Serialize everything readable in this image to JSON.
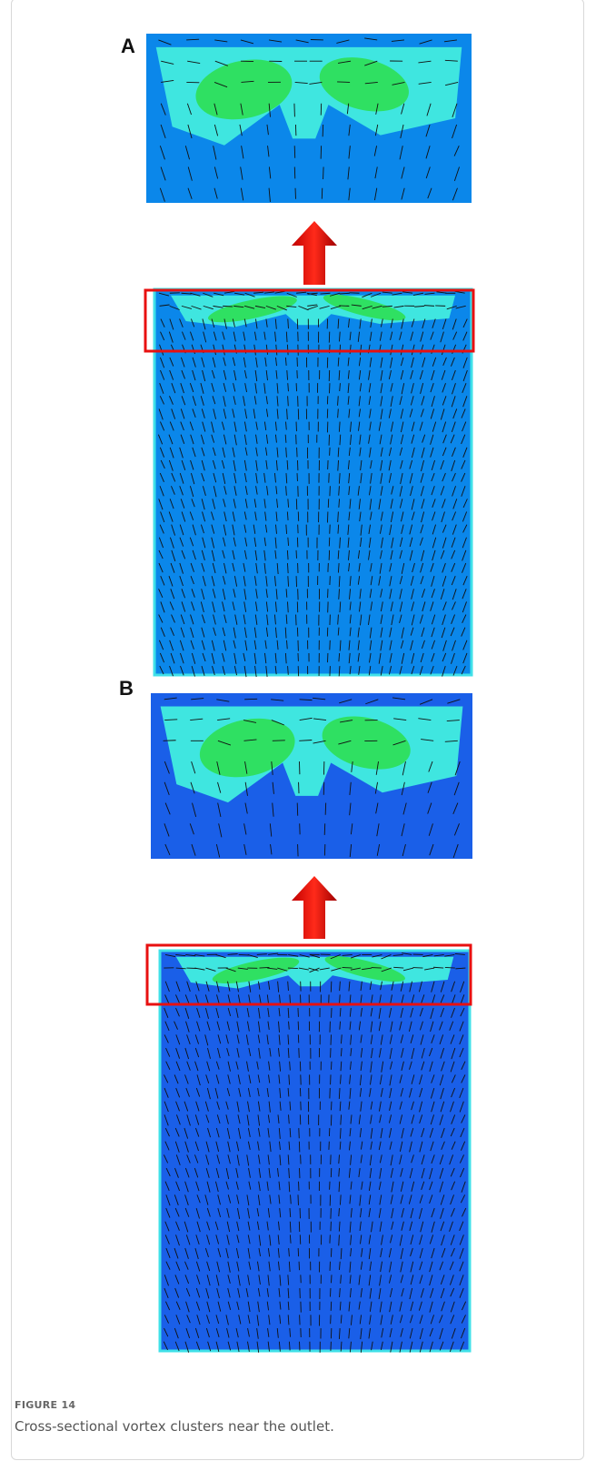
{
  "figure": {
    "panels": [
      {
        "label": "A"
      },
      {
        "label": "B"
      }
    ],
    "label": "FIGURE 14",
    "caption": "Cross-sectional vortex clusters near the outlet."
  }
}
